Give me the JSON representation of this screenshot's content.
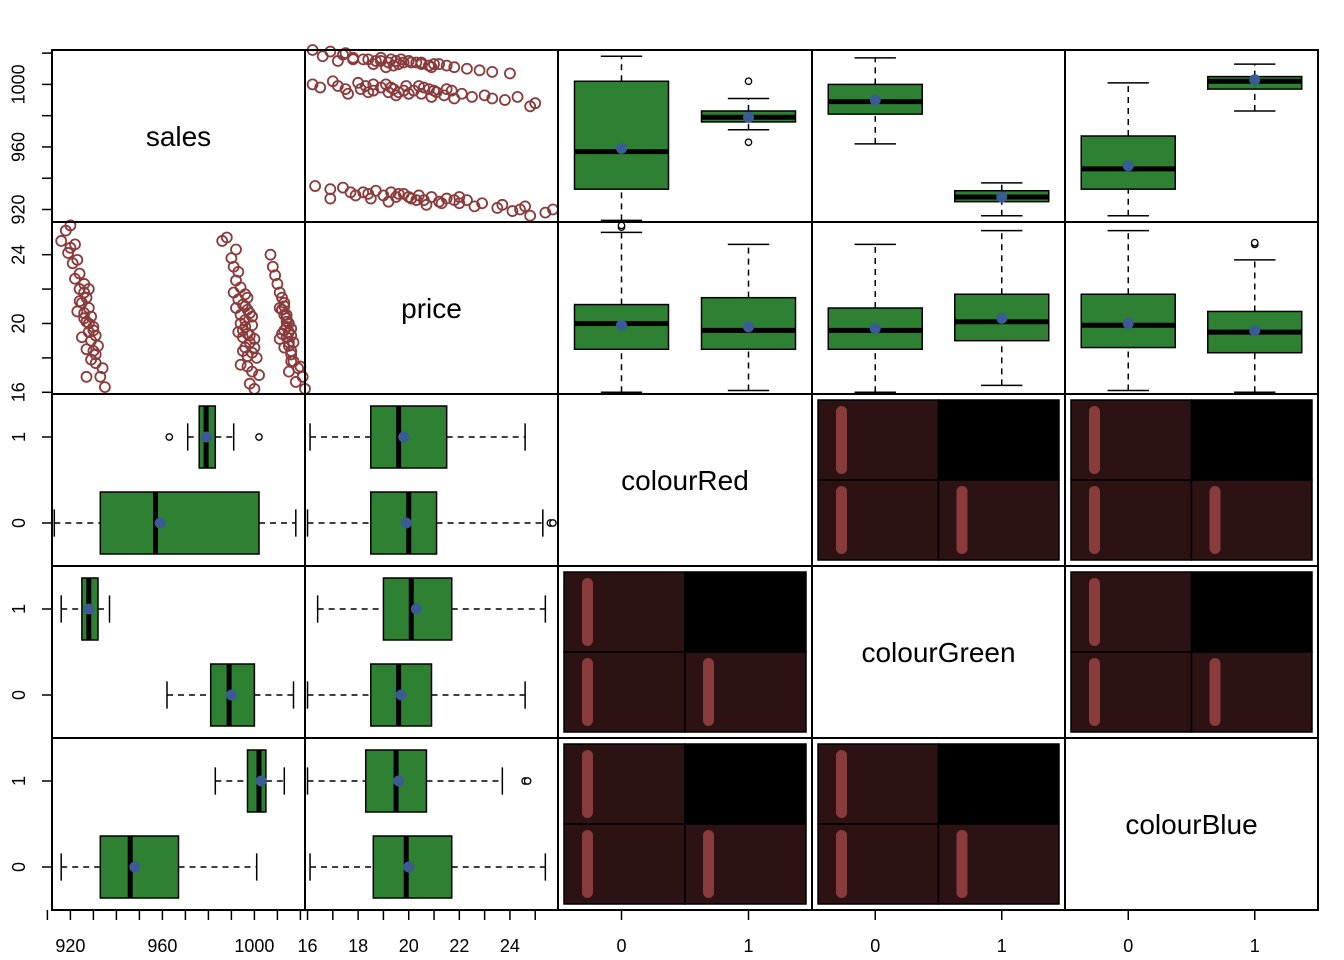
{
  "chart_data": {
    "type": "pairs",
    "variables": [
      "sales",
      "price",
      "colourRed",
      "colourGreen",
      "colourBlue"
    ],
    "ticks": {
      "sales": [
        "920",
        "960",
        "1000"
      ],
      "price_bottom": [
        "16",
        "18",
        "20",
        "22",
        "24"
      ],
      "price_left": [
        "16",
        "20",
        "24"
      ],
      "binary": [
        "0",
        "1"
      ]
    },
    "axis_ranges": {
      "sales": [
        912,
        1022
      ],
      "price": [
        15.9,
        25.9
      ],
      "binary": [
        -0.5,
        1.5
      ]
    },
    "colors": {
      "box_fill": "#2e8033",
      "points": "#8a3b3b",
      "mean_dot": "#3b5b94",
      "mosaic_fill": "#2d1214",
      "mosaic_dark": "#000000",
      "mosaic_bar": "#8a3b3b",
      "median_line": "#000000"
    },
    "scatter_sales_price": [
      [
        1022,
        16.2
      ],
      [
        1018,
        16.6
      ],
      [
        1021,
        16.9
      ],
      [
        1019,
        17.4
      ],
      [
        1020,
        17.5
      ],
      [
        1017,
        17.8
      ],
      [
        1016,
        18.2
      ],
      [
        1015,
        18.7
      ],
      [
        1017,
        18.9
      ],
      [
        1016,
        19.3
      ],
      [
        1015,
        19.5
      ],
      [
        1014,
        19.8
      ],
      [
        1014,
        20.1
      ],
      [
        1013,
        20.5
      ],
      [
        1012,
        20.8
      ],
      [
        1013,
        21.0
      ],
      [
        1012,
        21.5
      ],
      [
        1011,
        21.8
      ],
      [
        1010,
        22.3
      ],
      [
        1009,
        22.8
      ],
      [
        1008,
        23.3
      ],
      [
        1007,
        24.0
      ],
      [
        1016,
        17.8
      ],
      [
        1016,
        18.4
      ],
      [
        1015,
        18.9
      ],
      [
        1014,
        19.2
      ],
      [
        1013,
        19.6
      ],
      [
        1015,
        20.0
      ],
      [
        1014,
        20.3
      ],
      [
        1012,
        20.8
      ],
      [
        1011,
        19.1
      ],
      [
        1013,
        18.6
      ],
      [
        1016,
        19.7
      ],
      [
        1014,
        20.5
      ],
      [
        1012,
        19.4
      ],
      [
        1015,
        17.2
      ],
      [
        1013,
        21.2
      ],
      [
        1011,
        20.9
      ],
      [
        1000,
        16.2
      ],
      [
        998,
        16.5
      ],
      [
        1002,
        17.0
      ],
      [
        999,
        17.2
      ],
      [
        997,
        17.5
      ],
      [
        1001,
        18.0
      ],
      [
        999,
        18.3
      ],
      [
        996,
        18.6
      ],
      [
        998,
        18.9
      ],
      [
        1000,
        19.1
      ],
      [
        997,
        19.4
      ],
      [
        995,
        19.6
      ],
      [
        999,
        19.9
      ],
      [
        996,
        20.2
      ],
      [
        994,
        20.5
      ],
      [
        997,
        20.8
      ],
      [
        995,
        21.1
      ],
      [
        993,
        21.4
      ],
      [
        996,
        21.7
      ],
      [
        994,
        22.1
      ],
      [
        992,
        22.5
      ],
      [
        993,
        23.0
      ],
      [
        991,
        23.3
      ],
      [
        990,
        23.8
      ],
      [
        992,
        24.3
      ],
      [
        988,
        25.0
      ],
      [
        986,
        24.8
      ],
      [
        1000,
        18.6
      ],
      [
        998,
        19.3
      ],
      [
        996,
        19.8
      ],
      [
        999,
        20.4
      ],
      [
        997,
        18.1
      ],
      [
        995,
        19.2
      ],
      [
        998,
        20.6
      ],
      [
        994,
        20.0
      ],
      [
        996,
        21.0
      ],
      [
        993,
        19.5
      ],
      [
        995,
        18.4
      ],
      [
        997,
        21.5
      ],
      [
        992,
        20.9
      ],
      [
        994,
        17.6
      ],
      [
        991,
        21.8
      ],
      [
        935,
        16.3
      ],
      [
        933,
        16.9
      ],
      [
        934,
        17.4
      ],
      [
        931,
        17.7
      ],
      [
        930,
        18.4
      ],
      [
        932,
        18.7
      ],
      [
        929,
        19.0
      ],
      [
        931,
        19.3
      ],
      [
        928,
        19.5
      ],
      [
        930,
        19.8
      ],
      [
        927,
        20.1
      ],
      [
        929,
        20.4
      ],
      [
        926,
        20.6
      ],
      [
        928,
        20.9
      ],
      [
        925,
        21.2
      ],
      [
        927,
        21.5
      ],
      [
        924,
        22.0
      ],
      [
        926,
        22.3
      ],
      [
        922,
        22.6
      ],
      [
        924,
        22.9
      ],
      [
        921,
        23.5
      ],
      [
        919,
        24.1
      ],
      [
        916,
        24.8
      ],
      [
        918,
        25.4
      ],
      [
        920,
        25.7
      ],
      [
        929,
        17.9
      ],
      [
        927,
        18.5
      ],
      [
        930,
        19.6
      ],
      [
        928,
        20.0
      ],
      [
        926,
        21.8
      ],
      [
        925,
        19.2
      ],
      [
        923,
        20.7
      ],
      [
        927,
        16.9
      ],
      [
        931,
        18.2
      ],
      [
        924,
        21.3
      ],
      [
        922,
        24.6
      ],
      [
        920,
        24.4
      ],
      [
        928,
        22.0
      ],
      [
        926,
        20.3
      ],
      [
        923,
        23.7
      ]
    ],
    "box_sales_by_red": [
      {
        "group": "0",
        "min": 913,
        "q1": 933,
        "median": 957,
        "q3": 1002,
        "max": 1018,
        "mean": 959,
        "outliers": []
      },
      {
        "group": "1",
        "min": 971,
        "q1": 976,
        "median": 979,
        "q3": 983,
        "max": 991,
        "mean": 979,
        "outliers": [
          963,
          1002
        ]
      }
    ],
    "box_sales_by_green": [
      {
        "group": "0",
        "min": 962,
        "q1": 981,
        "median": 989,
        "q3": 1000,
        "max": 1017,
        "mean": 990,
        "outliers": []
      },
      {
        "group": "1",
        "min": 916,
        "q1": 925,
        "median": 928,
        "q3": 932,
        "max": 937,
        "mean": 928,
        "outliers": []
      }
    ],
    "box_sales_by_blue": [
      {
        "group": "0",
        "min": 916,
        "q1": 933,
        "median": 946,
        "q3": 967,
        "max": 1001,
        "mean": 948,
        "outliers": []
      },
      {
        "group": "1",
        "min": 983,
        "q1": 997,
        "median": 1002,
        "q3": 1005,
        "max": 1013,
        "mean": 1003,
        "outliers": []
      }
    ],
    "box_price_by_red": [
      {
        "group": "0",
        "min": 16.0,
        "q1": 18.5,
        "median": 20.0,
        "q3": 21.1,
        "max": 25.3,
        "mean": 19.9,
        "outliers": [
          25.6,
          25.7
        ]
      },
      {
        "group": "1",
        "min": 16.1,
        "q1": 18.5,
        "median": 19.6,
        "q3": 21.5,
        "max": 24.6,
        "mean": 19.8,
        "outliers": []
      }
    ],
    "box_price_by_green": [
      {
        "group": "0",
        "min": 16.0,
        "q1": 18.5,
        "median": 19.6,
        "q3": 20.9,
        "max": 24.6,
        "mean": 19.7,
        "outliers": []
      },
      {
        "group": "1",
        "min": 16.4,
        "q1": 19.0,
        "median": 20.1,
        "q3": 21.7,
        "max": 25.4,
        "mean": 20.3,
        "outliers": []
      }
    ],
    "box_price_by_blue": [
      {
        "group": "0",
        "min": 16.1,
        "q1": 18.6,
        "median": 19.9,
        "q3": 21.7,
        "max": 25.4,
        "mean": 20.0,
        "outliers": []
      },
      {
        "group": "1",
        "min": 16.0,
        "q1": 18.3,
        "median": 19.5,
        "q3": 20.7,
        "max": 23.7,
        "mean": 19.6,
        "outliers": [
          24.6,
          24.7
        ]
      }
    ]
  }
}
